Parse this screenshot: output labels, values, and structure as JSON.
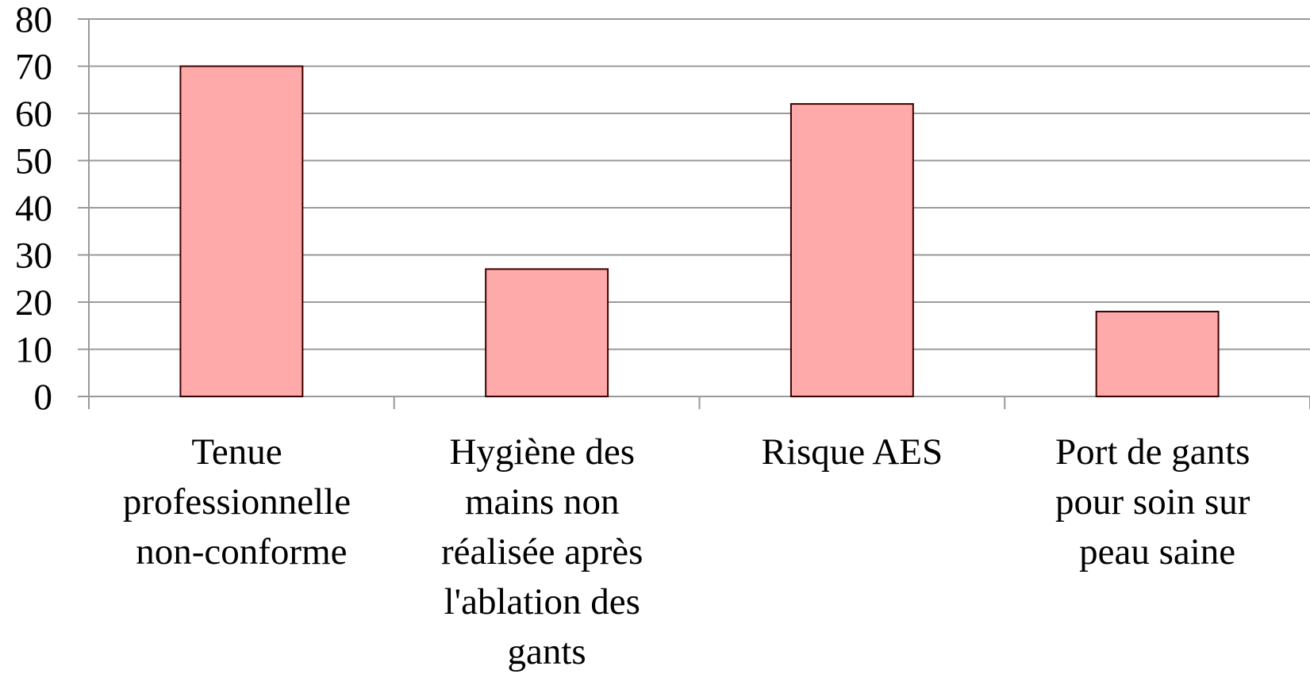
{
  "chart_data": {
    "type": "bar",
    "categories": [
      "Tenue professionnelle non-conforme",
      "Hygiène des mains non réalisée après l'ablation des gants",
      "Risque AES",
      "Port de gants pour soin sur peau saine"
    ],
    "values": [
      70,
      27,
      62,
      18
    ],
    "color": "#ffaaaa",
    "ylim": [
      0,
      80
    ],
    "yticks": [
      0,
      10,
      20,
      30,
      40,
      50,
      60,
      70,
      80
    ],
    "grid": true
  }
}
